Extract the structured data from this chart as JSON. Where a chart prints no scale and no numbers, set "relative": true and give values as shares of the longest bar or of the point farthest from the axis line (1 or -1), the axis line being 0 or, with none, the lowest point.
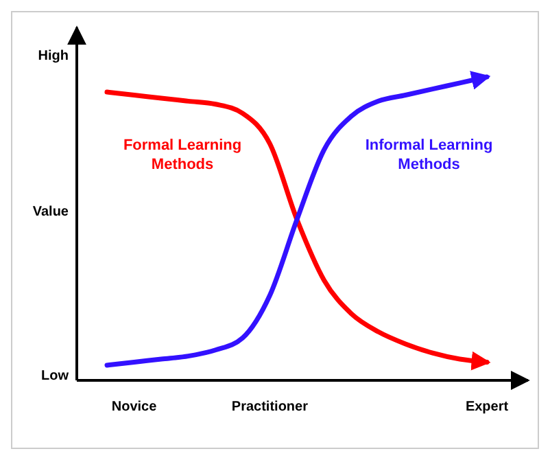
{
  "chart_data": {
    "type": "line",
    "ylabel": "Value",
    "relative": true,
    "annotations": [
      "High",
      "Low"
    ],
    "categories": [
      null,
      "Novice",
      null,
      null,
      null,
      null,
      "Practitioner",
      null,
      null,
      null,
      null,
      null,
      null,
      null,
      "Expert"
    ],
    "grid": false,
    "marker": "none",
    "line_style": "solid",
    "series": [
      {
        "name": "Formal Learning Methods",
        "color": "#ff0000",
        "values": [
          0.95,
          0.94,
          0.93,
          0.92,
          0.91,
          0.88,
          0.78,
          0.53,
          0.33,
          0.22,
          0.16,
          0.12,
          0.09,
          0.07,
          0.06
        ]
      },
      {
        "name": "Informal Learning Methods",
        "color": "#3311ff",
        "values": [
          0.05,
          0.06,
          0.07,
          0.08,
          0.1,
          0.14,
          0.28,
          0.53,
          0.76,
          0.87,
          0.92,
          0.94,
          0.96,
          0.98,
          1
        ]
      }
    ]
  }
}
